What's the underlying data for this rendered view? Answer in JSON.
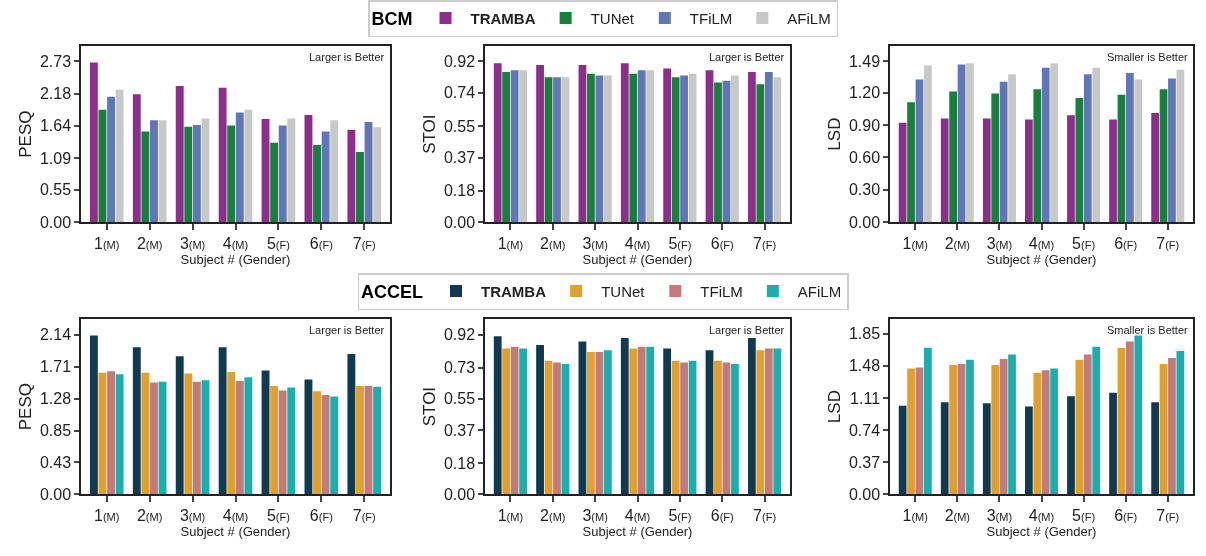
{
  "chart_data": [
    {
      "type": "bar",
      "ylabel": "PESQ",
      "xlabel": "Subject # (Gender)",
      "legend": "top",
      "legend_title": "BCM",
      "annotations": [
        "Larger is Better"
      ],
      "categories": [
        "1$_{(M)}$",
        "2$_{(M)}$",
        "3$_{(M)}$",
        "4$_{(M)}$",
        "5$_{(F)}$",
        "6$_{(F)}$",
        "7$_{(F)}$"
      ],
      "ylim": [
        0,
        2.99
      ],
      "yticks": [
        {
          "value": 0,
          "label": "0.00"
        },
        0.55,
        1.09,
        1.64,
        2.18,
        2.73
      ],
      "series": [
        {
          "name": "TRAMBA",
          "color": "#8b2f8b",
          "values": [
            2.71,
            2.17,
            2.31,
            2.28,
            1.75,
            1.82,
            1.57
          ]
        },
        {
          "name": "TUNet",
          "color": "#1a7f3c",
          "values": [
            1.91,
            1.54,
            1.62,
            1.64,
            1.35,
            1.31,
            1.19
          ]
        },
        {
          "name": "TFiLM",
          "color": "#5f77b5",
          "values": [
            2.13,
            1.73,
            1.65,
            1.86,
            1.64,
            1.54,
            1.7
          ]
        },
        {
          "name": "AFiLM",
          "color": "#c8c8c8",
          "values": [
            2.25,
            1.73,
            1.76,
            1.91,
            1.76,
            1.73,
            1.61
          ]
        }
      ]
    },
    {
      "type": "bar",
      "ylabel": "STOI",
      "xlabel": "Subject # (Gender)",
      "annotations": [
        "Larger is Better"
      ],
      "categories": [
        "1$_{(M)}$",
        "2$_{(M)}$",
        "3$_{(M)}$",
        "4$_{(M)}$",
        "5$_{(F)}$",
        "6$_{(F)}$",
        "7$_{(F)}$"
      ],
      "ylim": [
        0,
        1.008
      ],
      "yticks": [
        {
          "value": 0,
          "label": "0.00"
        },
        0.18,
        0.37,
        0.55,
        0.74,
        0.92
      ],
      "series": [
        {
          "color": "#8b2f8b",
          "values": [
            0.91,
            0.9,
            0.9,
            0.91,
            0.88,
            0.87,
            0.86
          ]
        },
        {
          "color": "#1a7f3c",
          "values": [
            0.86,
            0.83,
            0.85,
            0.85,
            0.83,
            0.8,
            0.79
          ]
        },
        {
          "color": "#5f77b5",
          "values": [
            0.87,
            0.83,
            0.84,
            0.87,
            0.84,
            0.81,
            0.86
          ]
        },
        {
          "color": "#c8c8c8",
          "values": [
            0.87,
            0.83,
            0.84,
            0.87,
            0.85,
            0.84,
            0.83
          ]
        }
      ]
    },
    {
      "type": "bar",
      "ylabel": "LSD",
      "xlabel": "Subject # (Gender)",
      "annotations": [
        "Smaller is Better"
      ],
      "categories": [
        "1$_{(M)}$",
        "2$_{(M)}$",
        "3$_{(M)}$",
        "4$_{(M)}$",
        "5$_{(F)}$",
        "6$_{(F)}$",
        "7$_{(F)}$"
      ],
      "ylim": [
        0,
        1.63
      ],
      "yticks": [
        {
          "value": 0,
          "label": "0.00"
        },
        {
          "value": 0.3,
          "label": "0.30"
        },
        {
          "value": 0.6,
          "label": "0.60"
        },
        {
          "value": 0.9,
          "label": "0.90"
        },
        {
          "value": 1.2,
          "label": "1.20"
        },
        1.49
      ],
      "series": [
        {
          "color": "#8b2f8b",
          "values": [
            0.92,
            0.96,
            0.96,
            0.95,
            0.99,
            0.95,
            1.01
          ]
        },
        {
          "color": "#1a7f3c",
          "values": [
            1.11,
            1.21,
            1.19,
            1.23,
            1.15,
            1.18,
            1.23
          ]
        },
        {
          "color": "#5f77b5",
          "values": [
            1.32,
            1.46,
            1.3,
            1.43,
            1.37,
            1.38,
            1.33
          ]
        },
        {
          "color": "#c8c8c8",
          "values": [
            1.45,
            1.47,
            1.37,
            1.47,
            1.43,
            1.32,
            1.41
          ]
        }
      ]
    },
    {
      "type": "bar",
      "ylabel": "PESQ",
      "xlabel": "Subject # (Gender)",
      "legend": "top",
      "legend_title": "ACCEL",
      "annotations": [
        "Larger is Better"
      ],
      "categories": [
        "1$_{(M)}$",
        "2$_{(M)}$",
        "3$_{(M)}$",
        "4$_{(M)}$",
        "5$_{(F)}$",
        "6$_{(F)}$",
        "7$_{(F)}$"
      ],
      "ylim": [
        0,
        2.35
      ],
      "yticks": [
        {
          "value": 0,
          "label": "0.00"
        },
        0.43,
        0.85,
        1.28,
        1.71,
        2.14
      ],
      "series": [
        {
          "name": "TRAMBA",
          "color": "#0f3a4f",
          "values": [
            2.13,
            1.97,
            1.85,
            1.97,
            1.66,
            1.54,
            1.88
          ]
        },
        {
          "name": "TUNet",
          "color": "#e0a030",
          "values": [
            1.63,
            1.63,
            1.62,
            1.64,
            1.45,
            1.38,
            1.45
          ]
        },
        {
          "name": "TFiLM",
          "color": "#c47a78",
          "values": [
            1.65,
            1.5,
            1.51,
            1.52,
            1.39,
            1.33,
            1.45
          ]
        },
        {
          "name": "AFiLM",
          "color": "#1aaeae",
          "values": [
            1.61,
            1.51,
            1.53,
            1.57,
            1.43,
            1.31,
            1.44
          ]
        }
      ]
    },
    {
      "type": "bar",
      "ylabel": "STOI",
      "xlabel": "Subject # (Gender)",
      "annotations": [
        "Larger is Better"
      ],
      "categories": [
        "1$_{(M)}$",
        "2$_{(M)}$",
        "3$_{(M)}$",
        "4$_{(M)}$",
        "5$_{(F)}$",
        "6$_{(F)}$",
        "7$_{(F)}$"
      ],
      "ylim": [
        0,
        1.01
      ],
      "yticks": [
        {
          "value": 0,
          "label": "0.00"
        },
        0.18,
        0.37,
        0.55,
        0.73,
        0.92
      ],
      "series": [
        {
          "color": "#0f3a4f",
          "values": [
            0.91,
            0.86,
            0.88,
            0.9,
            0.84,
            0.83,
            0.9
          ]
        },
        {
          "color": "#e0a030",
          "values": [
            0.84,
            0.77,
            0.82,
            0.84,
            0.77,
            0.77,
            0.83
          ]
        },
        {
          "color": "#c47a78",
          "values": [
            0.85,
            0.76,
            0.82,
            0.85,
            0.76,
            0.76,
            0.84
          ]
        },
        {
          "color": "#1aaeae",
          "values": [
            0.84,
            0.75,
            0.83,
            0.85,
            0.77,
            0.75,
            0.84
          ]
        }
      ]
    },
    {
      "type": "bar",
      "ylabel": "LSD",
      "xlabel": "Subject # (Gender)",
      "annotations": [
        "Smaller is Better"
      ],
      "categories": [
        "1$_{(M)}$",
        "2$_{(M)}$",
        "3$_{(M)}$",
        "4$_{(M)}$",
        "5$_{(F)}$",
        "6$_{(F)}$",
        "7$_{(F)}$"
      ],
      "ylim": [
        0,
        2.02
      ],
      "yticks": [
        {
          "value": 0,
          "label": "0.00"
        },
        0.37,
        0.74,
        1.11,
        1.48,
        1.85
      ],
      "series": [
        {
          "color": "#0f3a4f",
          "values": [
            1.02,
            1.06,
            1.05,
            1.01,
            1.13,
            1.17,
            1.06
          ]
        },
        {
          "color": "#e0a030",
          "values": [
            1.45,
            1.49,
            1.49,
            1.4,
            1.55,
            1.69,
            1.5
          ]
        },
        {
          "color": "#c47a78",
          "values": [
            1.46,
            1.5,
            1.56,
            1.43,
            1.61,
            1.76,
            1.57
          ]
        },
        {
          "color": "#1aaeae",
          "values": [
            1.69,
            1.55,
            1.61,
            1.45,
            1.7,
            1.83,
            1.65
          ]
        }
      ]
    }
  ]
}
